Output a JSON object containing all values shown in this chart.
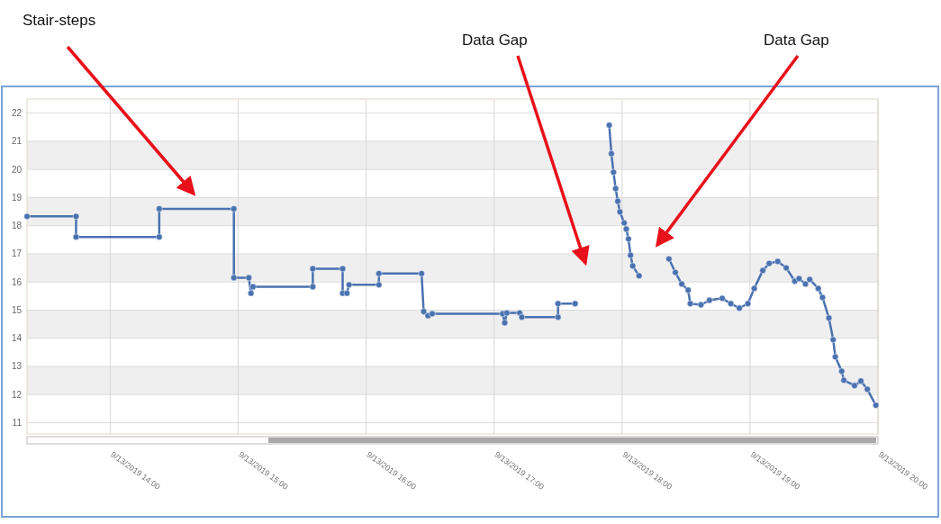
{
  "chart_data": {
    "type": "line",
    "color": "#4a72b0",
    "marker": "circle",
    "grid": true,
    "xlim": [
      "2019-09-13T13:21",
      "2019-09-13T20:00"
    ],
    "ylim": [
      10.6,
      22.5
    ],
    "xticks": [
      {
        "value": "2019-09-13T14:00",
        "label": "9/13/2019 14:00"
      },
      {
        "value": "2019-09-13T15:00",
        "label": "9/13/2019 15:00"
      },
      {
        "value": "2019-09-13T16:00",
        "label": "9/13/2019 16:00"
      },
      {
        "value": "2019-09-13T17:00",
        "label": "9/13/2019 17:00"
      },
      {
        "value": "2019-09-13T18:00",
        "label": "9/13/2019 18:00"
      },
      {
        "value": "2019-09-13T19:00",
        "label": "9/13/2019 19:00"
      },
      {
        "value": "2019-09-13T20:00",
        "label": "9/13/2019 20:00"
      }
    ],
    "yticks": [
      11,
      12,
      13,
      14,
      15,
      16,
      17,
      18,
      19,
      20,
      21,
      22
    ],
    "x": [
      "2019-09-13T13:21",
      "2019-09-13T13:44",
      "2019-09-13T13:44",
      "2019-09-13T14:23",
      "2019-09-13T14:23",
      "2019-09-13T14:58",
      "2019-09-13T14:58",
      "2019-09-13T15:05",
      "2019-09-13T15:06",
      "2019-09-13T15:07",
      "2019-09-13T15:35",
      "2019-09-13T15:35",
      "2019-09-13T15:49",
      "2019-09-13T15:49",
      "2019-09-13T15:51",
      "2019-09-13T15:52",
      "2019-09-13T16:06",
      "2019-09-13T16:06",
      "2019-09-13T16:26",
      "2019-09-13T16:27",
      "2019-09-13T16:29",
      "2019-09-13T16:31",
      "2019-09-13T17:04",
      "2019-09-13T17:05",
      "2019-09-13T17:06",
      "2019-09-13T17:12",
      "2019-09-13T17:13",
      "2019-09-13T17:30",
      "2019-09-13T17:30",
      "2019-09-13T17:38",
      "2019-09-13T17:48",
      "2019-09-13T17:54",
      "2019-09-13T17:55",
      "2019-09-13T17:56",
      "2019-09-13T17:57",
      "2019-09-13T17:58",
      "2019-09-13T17:59",
      "2019-09-13T18:01",
      "2019-09-13T18:02",
      "2019-09-13T18:03",
      "2019-09-13T18:04",
      "2019-09-13T18:05",
      "2019-09-13T18:08",
      "2019-09-13T18:15",
      "2019-09-13T18:22",
      "2019-09-13T18:25",
      "2019-09-13T18:28",
      "2019-09-13T18:31",
      "2019-09-13T18:32",
      "2019-09-13T18:37",
      "2019-09-13T18:41",
      "2019-09-13T18:47",
      "2019-09-13T18:51",
      "2019-09-13T18:55",
      "2019-09-13T18:59",
      "2019-09-13T19:02",
      "2019-09-13T19:06",
      "2019-09-13T19:09",
      "2019-09-13T19:13",
      "2019-09-13T19:17",
      "2019-09-13T19:21",
      "2019-09-13T19:23",
      "2019-09-13T19:26",
      "2019-09-13T19:28",
      "2019-09-13T19:32",
      "2019-09-13T19:34",
      "2019-09-13T19:37",
      "2019-09-13T19:39",
      "2019-09-13T19:40",
      "2019-09-13T19:43",
      "2019-09-13T19:44",
      "2019-09-13T19:49",
      "2019-09-13T19:52",
      "2019-09-13T19:55",
      "2019-09-13T19:59"
    ],
    "values": [
      18.33,
      18.33,
      17.6,
      17.6,
      18.6,
      18.6,
      16.15,
      16.15,
      15.6,
      15.83,
      15.83,
      16.47,
      16.47,
      15.6,
      15.6,
      15.9,
      15.9,
      16.3,
      16.3,
      14.95,
      14.8,
      14.87,
      14.87,
      14.55,
      14.9,
      14.9,
      14.75,
      14.75,
      15.23,
      15.23,
      null,
      21.57,
      20.56,
      19.9,
      19.32,
      18.87,
      18.49,
      18.1,
      17.88,
      17.53,
      16.95,
      16.57,
      16.22,
      null,
      16.82,
      16.34,
      15.93,
      15.71,
      15.23,
      15.19,
      15.35,
      15.42,
      15.23,
      15.07,
      15.23,
      15.77,
      16.41,
      16.66,
      16.73,
      16.5,
      16.03,
      16.12,
      15.93,
      16.09,
      15.77,
      15.45,
      14.72,
      13.95,
      13.34,
      12.83,
      12.51,
      12.32,
      12.48,
      12.19,
      11.62
    ],
    "annotations": [
      "Stair-steps",
      "Data Gap",
      "Data Gap"
    ]
  }
}
